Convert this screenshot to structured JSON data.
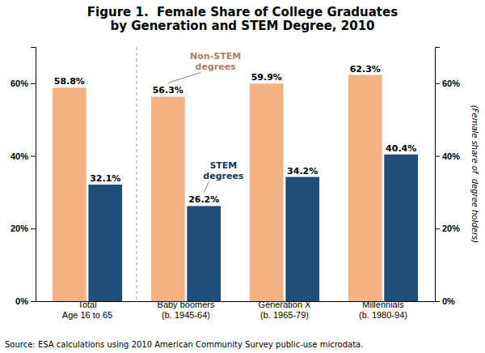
{
  "chart_data": {
    "type": "bar",
    "title": "Figure 1.  Female Share of College Graduates\nby Generation and STEM Degree, 2010",
    "categories": [
      "Total\nAge 16 to 65",
      "Baby boomers\n(b. 1945-64)",
      "Generation X\n(b. 1965-79)",
      "Millennials\n(b. 1980-94)"
    ],
    "series": [
      {
        "name": "Non-STEM\ndegrees",
        "color": "#F4B183",
        "values": [
          58.8,
          56.3,
          59.9,
          62.3
        ],
        "value_labels": [
          "58.8%",
          "56.3%",
          "59.9%",
          "62.3%"
        ]
      },
      {
        "name": "STEM\ndegrees",
        "color": "#1F4E79",
        "values": [
          32.1,
          26.2,
          34.2,
          40.4
        ],
        "value_labels": [
          "32.1%",
          "26.2%",
          "34.2%",
          "40.4%"
        ]
      }
    ],
    "ylabel": "(Female share of  degree holders)",
    "ylim": [
      0,
      70
    ],
    "yticks": [
      {
        "value": 0,
        "label": "0%"
      },
      {
        "value": 20,
        "label": "20%"
      },
      {
        "value": 40,
        "label": "40%"
      },
      {
        "value": 60,
        "label": "60%"
      }
    ],
    "data_labels": true,
    "grid": false,
    "source": "Source: ESA calculations using 2010 American Community Survey public-use microdata."
  }
}
